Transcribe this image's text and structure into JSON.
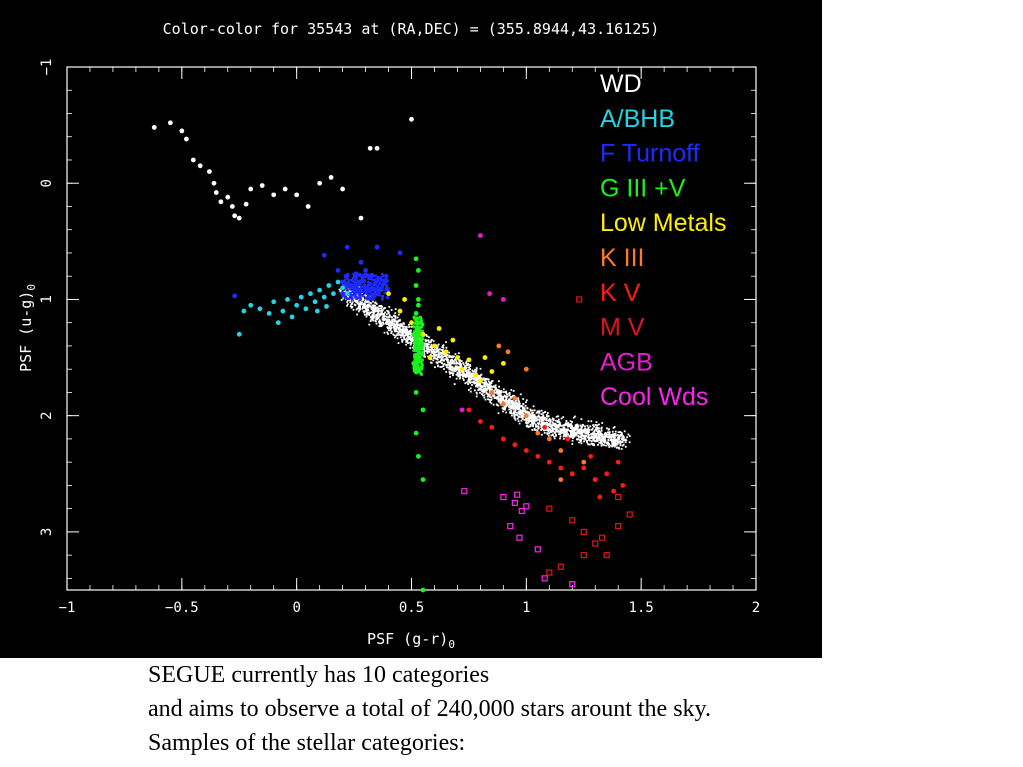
{
  "caption": {
    "lines": [
      "SEGUE currently has 10 categories",
      "and aims  to observe a total of 240,000 stars arount the sky.",
      "Samples of the stellar categories:"
    ]
  },
  "chart_data": {
    "type": "scatter",
    "title": "Color-color for 35543 at (RA,DEC) = (355.8944,43.16125)",
    "xlabel": "PSF (g-r)",
    "xlabel_sub": "0",
    "ylabel": "PSF (u-g)",
    "ylabel_sub": "0",
    "xlim": [
      -1,
      2
    ],
    "ylim": [
      -1,
      3.5
    ],
    "y_inverted": true,
    "x_ticks": [
      -1,
      -0.5,
      0,
      0.5,
      1,
      1.5,
      2
    ],
    "x_tick_labels": [
      "−1",
      "−0.5",
      "0",
      "0.5",
      "1",
      "1.5",
      "2"
    ],
    "y_ticks": [
      -1,
      0,
      1,
      2,
      3
    ],
    "y_tick_labels": [
      "−1",
      "0",
      "1",
      "2",
      "3"
    ],
    "grid": false,
    "legend_position": "top-right",
    "series": [
      {
        "name": "WD",
        "color": "#ffffff",
        "points": [
          [
            -0.62,
            -0.48
          ],
          [
            -0.55,
            -0.52
          ],
          [
            -0.5,
            -0.45
          ],
          [
            -0.48,
            -0.38
          ],
          [
            -0.45,
            -0.2
          ],
          [
            -0.42,
            -0.15
          ],
          [
            -0.38,
            -0.1
          ],
          [
            -0.36,
            0.0
          ],
          [
            -0.35,
            0.08
          ],
          [
            -0.33,
            0.16
          ],
          [
            -0.3,
            0.12
          ],
          [
            -0.28,
            0.2
          ],
          [
            -0.27,
            0.28
          ],
          [
            -0.25,
            0.3
          ],
          [
            -0.22,
            0.18
          ],
          [
            -0.2,
            0.05
          ],
          [
            -0.15,
            0.02
          ],
          [
            -0.1,
            0.1
          ],
          [
            -0.05,
            0.05
          ],
          [
            0.0,
            0.1
          ],
          [
            0.05,
            0.2
          ],
          [
            0.1,
            0.0
          ],
          [
            0.15,
            -0.05
          ],
          [
            0.2,
            0.05
          ],
          [
            0.28,
            0.3
          ],
          [
            0.32,
            -0.3
          ],
          [
            0.35,
            -0.3
          ],
          [
            0.5,
            -0.55
          ]
        ]
      },
      {
        "name": "A/BHB",
        "color": "#22d4e0",
        "points": [
          [
            -0.23,
            1.1
          ],
          [
            -0.2,
            1.05
          ],
          [
            -0.16,
            1.08
          ],
          [
            -0.12,
            1.12
          ],
          [
            -0.1,
            1.02
          ],
          [
            -0.06,
            1.1
          ],
          [
            -0.04,
            1.0
          ],
          [
            -0.02,
            1.15
          ],
          [
            0.0,
            1.05
          ],
          [
            0.02,
            0.98
          ],
          [
            0.04,
            1.08
          ],
          [
            0.06,
            0.95
          ],
          [
            0.08,
            1.02
          ],
          [
            0.1,
            0.92
          ],
          [
            0.12,
            0.98
          ],
          [
            0.14,
            0.88
          ],
          [
            0.16,
            0.95
          ],
          [
            0.18,
            0.85
          ],
          [
            0.2,
            0.9
          ],
          [
            0.22,
            0.95
          ],
          [
            0.13,
            1.06
          ],
          [
            -0.08,
            1.2
          ],
          [
            -0.25,
            1.3
          ],
          [
            0.09,
            1.1
          ]
        ]
      },
      {
        "name": "F Turnoff",
        "color": "#1e2bff",
        "points": [
          [
            0.18,
            0.75
          ],
          [
            0.2,
            0.85
          ],
          [
            0.22,
            0.8
          ],
          [
            0.24,
            0.88
          ],
          [
            0.26,
            0.78
          ],
          [
            0.28,
            0.85
          ],
          [
            0.3,
            0.9
          ],
          [
            0.32,
            0.8
          ],
          [
            0.34,
            0.87
          ],
          [
            0.36,
            0.92
          ],
          [
            0.38,
            0.84
          ],
          [
            0.2,
            0.95
          ],
          [
            0.25,
            0.92
          ],
          [
            0.3,
            0.75
          ],
          [
            0.12,
            0.62
          ],
          [
            0.22,
            0.55
          ],
          [
            0.35,
            0.55
          ],
          [
            0.45,
            0.6
          ],
          [
            -0.27,
            0.97
          ],
          [
            0.28,
            0.68
          ]
        ]
      },
      {
        "name": "G III +V",
        "color": "#19f21c",
        "points": [
          [
            0.52,
            0.65
          ],
          [
            0.53,
            0.75
          ],
          [
            0.52,
            0.88
          ],
          [
            0.53,
            1.0
          ],
          [
            0.52,
            1.12
          ],
          [
            0.53,
            1.25
          ],
          [
            0.52,
            1.38
          ],
          [
            0.53,
            1.5
          ],
          [
            0.52,
            1.62
          ],
          [
            0.51,
            1.3
          ],
          [
            0.54,
            1.42
          ],
          [
            0.51,
            1.55
          ],
          [
            0.54,
            1.2
          ],
          [
            0.53,
            1.05
          ],
          [
            0.52,
            1.8
          ],
          [
            0.55,
            1.95
          ],
          [
            0.52,
            2.15
          ],
          [
            0.53,
            2.35
          ],
          [
            0.55,
            2.55
          ],
          [
            0.55,
            3.5
          ]
        ]
      },
      {
        "name": "Low Metals",
        "color": "#ffee00",
        "points": [
          [
            0.45,
            1.1
          ],
          [
            0.5,
            1.2
          ],
          [
            0.55,
            1.3
          ],
          [
            0.6,
            1.4
          ],
          [
            0.62,
            1.25
          ],
          [
            0.65,
            1.45
          ],
          [
            0.7,
            1.5
          ],
          [
            0.72,
            1.6
          ],
          [
            0.75,
            1.52
          ],
          [
            0.78,
            1.65
          ],
          [
            0.8,
            1.7
          ],
          [
            0.58,
            1.5
          ],
          [
            0.68,
            1.35
          ],
          [
            0.82,
            1.5
          ],
          [
            0.4,
            0.95
          ],
          [
            0.47,
            1.0
          ],
          [
            0.85,
            1.62
          ],
          [
            0.9,
            1.55
          ]
        ]
      },
      {
        "name": "K III",
        "color": "#ff7a28",
        "points": [
          [
            0.85,
            1.8
          ],
          [
            0.9,
            1.9
          ],
          [
            0.95,
            1.85
          ],
          [
            1.0,
            2.0
          ],
          [
            1.05,
            2.15
          ],
          [
            1.1,
            2.2
          ],
          [
            1.15,
            2.3
          ],
          [
            1.2,
            2.5
          ],
          [
            0.92,
            1.45
          ],
          [
            1.0,
            1.6
          ],
          [
            1.15,
            2.55
          ],
          [
            1.25,
            2.4
          ],
          [
            1.3,
            2.55
          ],
          [
            0.88,
            1.4
          ]
        ]
      },
      {
        "name": "K V",
        "color": "#ff1a1a",
        "points": [
          [
            0.75,
            1.95
          ],
          [
            0.8,
            2.05
          ],
          [
            0.85,
            2.1
          ],
          [
            0.9,
            2.2
          ],
          [
            0.95,
            2.25
          ],
          [
            1.0,
            2.3
          ],
          [
            1.05,
            2.35
          ],
          [
            1.1,
            2.4
          ],
          [
            1.15,
            2.45
          ],
          [
            1.2,
            2.5
          ],
          [
            1.25,
            2.45
          ],
          [
            1.3,
            2.55
          ],
          [
            1.35,
            2.5
          ],
          [
            1.4,
            2.4
          ],
          [
            1.42,
            2.6
          ],
          [
            1.32,
            2.7
          ],
          [
            1.38,
            2.65
          ],
          [
            1.28,
            2.35
          ],
          [
            1.18,
            2.2
          ],
          [
            1.08,
            2.1
          ]
        ]
      },
      {
        "name": "M V",
        "color": "#e0141e",
        "points": [
          [
            1.1,
            2.8
          ],
          [
            1.2,
            2.9
          ],
          [
            1.25,
            3.0
          ],
          [
            1.3,
            3.1
          ],
          [
            1.35,
            3.2
          ],
          [
            1.4,
            2.95
          ],
          [
            1.45,
            2.85
          ],
          [
            1.15,
            3.3
          ],
          [
            1.25,
            3.2
          ],
          [
            1.33,
            3.05
          ],
          [
            1.1,
            3.35
          ],
          [
            1.2,
            3.45
          ],
          [
            1.4,
            2.7
          ],
          [
            1.23,
            1.0
          ]
        ]
      },
      {
        "name": "AGB",
        "color": "#e81cd0",
        "points": [
          [
            0.9,
            1.0
          ],
          [
            0.84,
            0.95
          ],
          [
            0.8,
            0.45
          ],
          [
            0.72,
            1.95
          ]
        ]
      },
      {
        "name": "Cool Wds",
        "color": "#ff22ee",
        "points": [
          [
            0.73,
            2.65
          ],
          [
            0.9,
            2.7
          ],
          [
            0.95,
            2.75
          ],
          [
            0.98,
            2.82
          ],
          [
            1.0,
            2.78
          ],
          [
            0.93,
            2.95
          ],
          [
            0.97,
            3.05
          ],
          [
            1.05,
            3.15
          ],
          [
            1.08,
            3.4
          ],
          [
            1.2,
            3.45
          ],
          [
            0.96,
            2.68
          ]
        ]
      }
    ]
  }
}
